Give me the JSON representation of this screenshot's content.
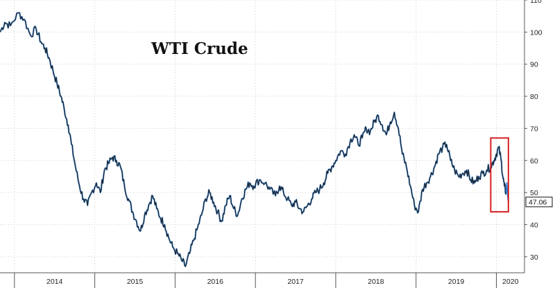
{
  "chart_data": {
    "type": "line",
    "title": "WTI Crude",
    "xlabel": "",
    "ylabel": "",
    "x_tick_labels": [
      "2014",
      "2015",
      "2016",
      "2017",
      "2018",
      "2019",
      "2020"
    ],
    "y_tick_labels": [
      "30",
      "40",
      "50",
      "60",
      "70",
      "80",
      "90",
      "100",
      "110"
    ],
    "ylim": [
      25,
      110
    ],
    "xlim": [
      2013.82,
      2020.35
    ],
    "grid": true,
    "last_value_label": "47.06",
    "highlight_box": {
      "x_range": [
        2019.93,
        2020.15
      ],
      "y_range": [
        44,
        67
      ],
      "color": "#d62020"
    },
    "series": [
      {
        "color": "#1f1f1f",
        "x": [
          2013.82,
          2013.88,
          2013.95,
          2014.05,
          2014.12,
          2014.2,
          2014.27,
          2014.33,
          2014.38,
          2014.43,
          2014.48,
          2014.53,
          2014.58,
          2014.62,
          2014.67,
          2014.71,
          2014.76,
          2014.81,
          2014.86,
          2014.91,
          2014.96,
          2015.02,
          2015.07,
          2015.12,
          2015.17,
          2015.22,
          2015.27,
          2015.32,
          2015.37,
          2015.42,
          2015.47,
          2015.52,
          2015.57,
          2015.62,
          2015.67,
          2015.72,
          2015.77,
          2015.82,
          2015.87,
          2015.92,
          2015.97,
          2016.03,
          2016.08,
          2016.13,
          2016.18,
          2016.23,
          2016.28,
          2016.33,
          2016.38,
          2016.43,
          2016.48,
          2016.53,
          2016.58,
          2016.63,
          2016.68,
          2016.73,
          2016.78,
          2016.83,
          2016.88,
          2016.93,
          2016.98,
          2017.05,
          2017.12,
          2017.18,
          2017.25,
          2017.3,
          2017.35,
          2017.4,
          2017.45,
          2017.5,
          2017.55,
          2017.6,
          2017.65,
          2017.7,
          2017.75,
          2017.8,
          2017.85,
          2017.9,
          2017.95,
          2018.0,
          2018.06,
          2018.12,
          2018.18,
          2018.23,
          2018.28,
          2018.33,
          2018.38,
          2018.43,
          2018.48,
          2018.53,
          2018.58,
          2018.63,
          2018.68,
          2018.73,
          2018.78,
          2018.83,
          2018.88,
          2018.93,
          2018.98,
          2019.03,
          2019.08,
          2019.13,
          2019.18,
          2019.23,
          2019.28,
          2019.33,
          2019.38,
          2019.43,
          2019.48,
          2019.53,
          2019.58,
          2019.63,
          2019.68,
          2019.73,
          2019.78,
          2019.83,
          2019.88,
          2019.93,
          2019.97,
          2020.0,
          2020.03,
          2020.06,
          2020.08,
          2020.1,
          2020.12
        ],
        "values": [
          100,
          103,
          102,
          106,
          104,
          99,
          101,
          97,
          95,
          92,
          88,
          84,
          80,
          76,
          71,
          65,
          58,
          52,
          48,
          46,
          50,
          53,
          50,
          57,
          59,
          61,
          60,
          58,
          52,
          48,
          44,
          41,
          38,
          43,
          46,
          49,
          45,
          42,
          40,
          36,
          33,
          31,
          29,
          27,
          31,
          35,
          39,
          43,
          48,
          50,
          47,
          44,
          41,
          46,
          49,
          45,
          43,
          48,
          51,
          53,
          52,
          54,
          53,
          51,
          49,
          52,
          50,
          48,
          46,
          47,
          45,
          44,
          46,
          48,
          50,
          51,
          53,
          56,
          58,
          60,
          63,
          62,
          66,
          68,
          65,
          67,
          70,
          69,
          72,
          74,
          71,
          68,
          72,
          75,
          70,
          62,
          58,
          52,
          46,
          44,
          51,
          53,
          55,
          58,
          62,
          64,
          65,
          60,
          57,
          55,
          56,
          57,
          54,
          53,
          55,
          56,
          57,
          58,
          60,
          62,
          64,
          60,
          55,
          52,
          50
        ]
      },
      {
        "color": "#2a7bd3",
        "x": [
          2020.12,
          2020.13,
          2020.14,
          2020.15
        ],
        "values": [
          50,
          53,
          49,
          47.06
        ]
      }
    ]
  }
}
